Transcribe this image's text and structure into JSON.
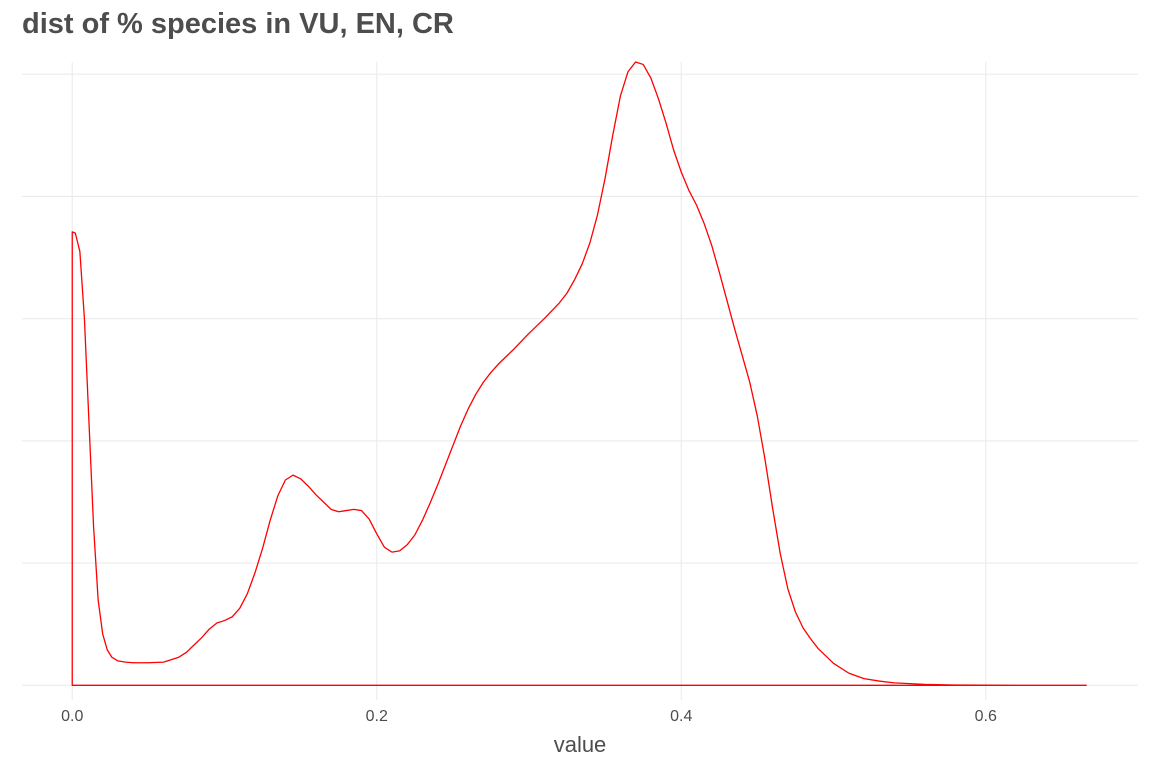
{
  "chart_data": {
    "type": "area",
    "title": "dist of % species in VU, EN, CR",
    "xlabel": "value",
    "ylabel": "",
    "xlim": [
      -0.033,
      0.7
    ],
    "ylim": [
      -0.12,
      5.1
    ],
    "x_ticks": [
      0.0,
      0.2,
      0.4,
      0.6
    ],
    "x_tick_labels": [
      "0.0",
      "0.2",
      "0.4",
      "0.6"
    ],
    "y_grid": [
      0,
      1,
      2,
      3,
      4,
      5
    ],
    "y_tick_labels_shown": false,
    "grid": true,
    "legend": "none",
    "series": [
      {
        "color": "#ff0000",
        "fill": "none",
        "x": [
          0.0,
          0.002,
          0.005,
          0.008,
          0.011,
          0.014,
          0.017,
          0.02,
          0.023,
          0.026,
          0.03,
          0.035,
          0.04,
          0.05,
          0.06,
          0.07,
          0.075,
          0.08,
          0.085,
          0.09,
          0.095,
          0.1,
          0.105,
          0.11,
          0.115,
          0.12,
          0.125,
          0.13,
          0.135,
          0.14,
          0.145,
          0.15,
          0.155,
          0.16,
          0.165,
          0.17,
          0.175,
          0.18,
          0.185,
          0.19,
          0.195,
          0.2,
          0.205,
          0.21,
          0.215,
          0.22,
          0.225,
          0.23,
          0.235,
          0.24,
          0.245,
          0.25,
          0.255,
          0.26,
          0.265,
          0.27,
          0.275,
          0.28,
          0.29,
          0.3,
          0.31,
          0.32,
          0.325,
          0.33,
          0.335,
          0.34,
          0.345,
          0.35,
          0.355,
          0.36,
          0.365,
          0.37,
          0.375,
          0.38,
          0.385,
          0.39,
          0.395,
          0.4,
          0.405,
          0.41,
          0.415,
          0.42,
          0.425,
          0.43,
          0.435,
          0.44,
          0.445,
          0.45,
          0.455,
          0.46,
          0.465,
          0.47,
          0.475,
          0.48,
          0.485,
          0.49,
          0.5,
          0.51,
          0.52,
          0.53,
          0.54,
          0.56,
          0.58,
          0.6,
          0.63,
          0.666
        ],
        "y": [
          3.71,
          3.7,
          3.55,
          3.0,
          2.15,
          1.3,
          0.7,
          0.42,
          0.29,
          0.23,
          0.2,
          0.19,
          0.185,
          0.185,
          0.19,
          0.23,
          0.27,
          0.33,
          0.39,
          0.46,
          0.51,
          0.53,
          0.56,
          0.63,
          0.75,
          0.92,
          1.12,
          1.35,
          1.55,
          1.68,
          1.72,
          1.69,
          1.63,
          1.56,
          1.5,
          1.44,
          1.42,
          1.43,
          1.44,
          1.43,
          1.36,
          1.24,
          1.13,
          1.09,
          1.1,
          1.15,
          1.23,
          1.35,
          1.49,
          1.64,
          1.8,
          1.96,
          2.12,
          2.26,
          2.38,
          2.48,
          2.56,
          2.63,
          2.75,
          2.88,
          3.0,
          3.13,
          3.21,
          3.32,
          3.45,
          3.62,
          3.85,
          4.15,
          4.5,
          4.82,
          5.02,
          5.1,
          5.08,
          4.97,
          4.8,
          4.6,
          4.38,
          4.2,
          4.05,
          3.93,
          3.78,
          3.6,
          3.38,
          3.15,
          2.92,
          2.7,
          2.48,
          2.2,
          1.85,
          1.45,
          1.08,
          0.79,
          0.6,
          0.47,
          0.38,
          0.3,
          0.18,
          0.1,
          0.055,
          0.035,
          0.02,
          0.008,
          0.003,
          0.001,
          0.0,
          0.0
        ]
      }
    ]
  }
}
